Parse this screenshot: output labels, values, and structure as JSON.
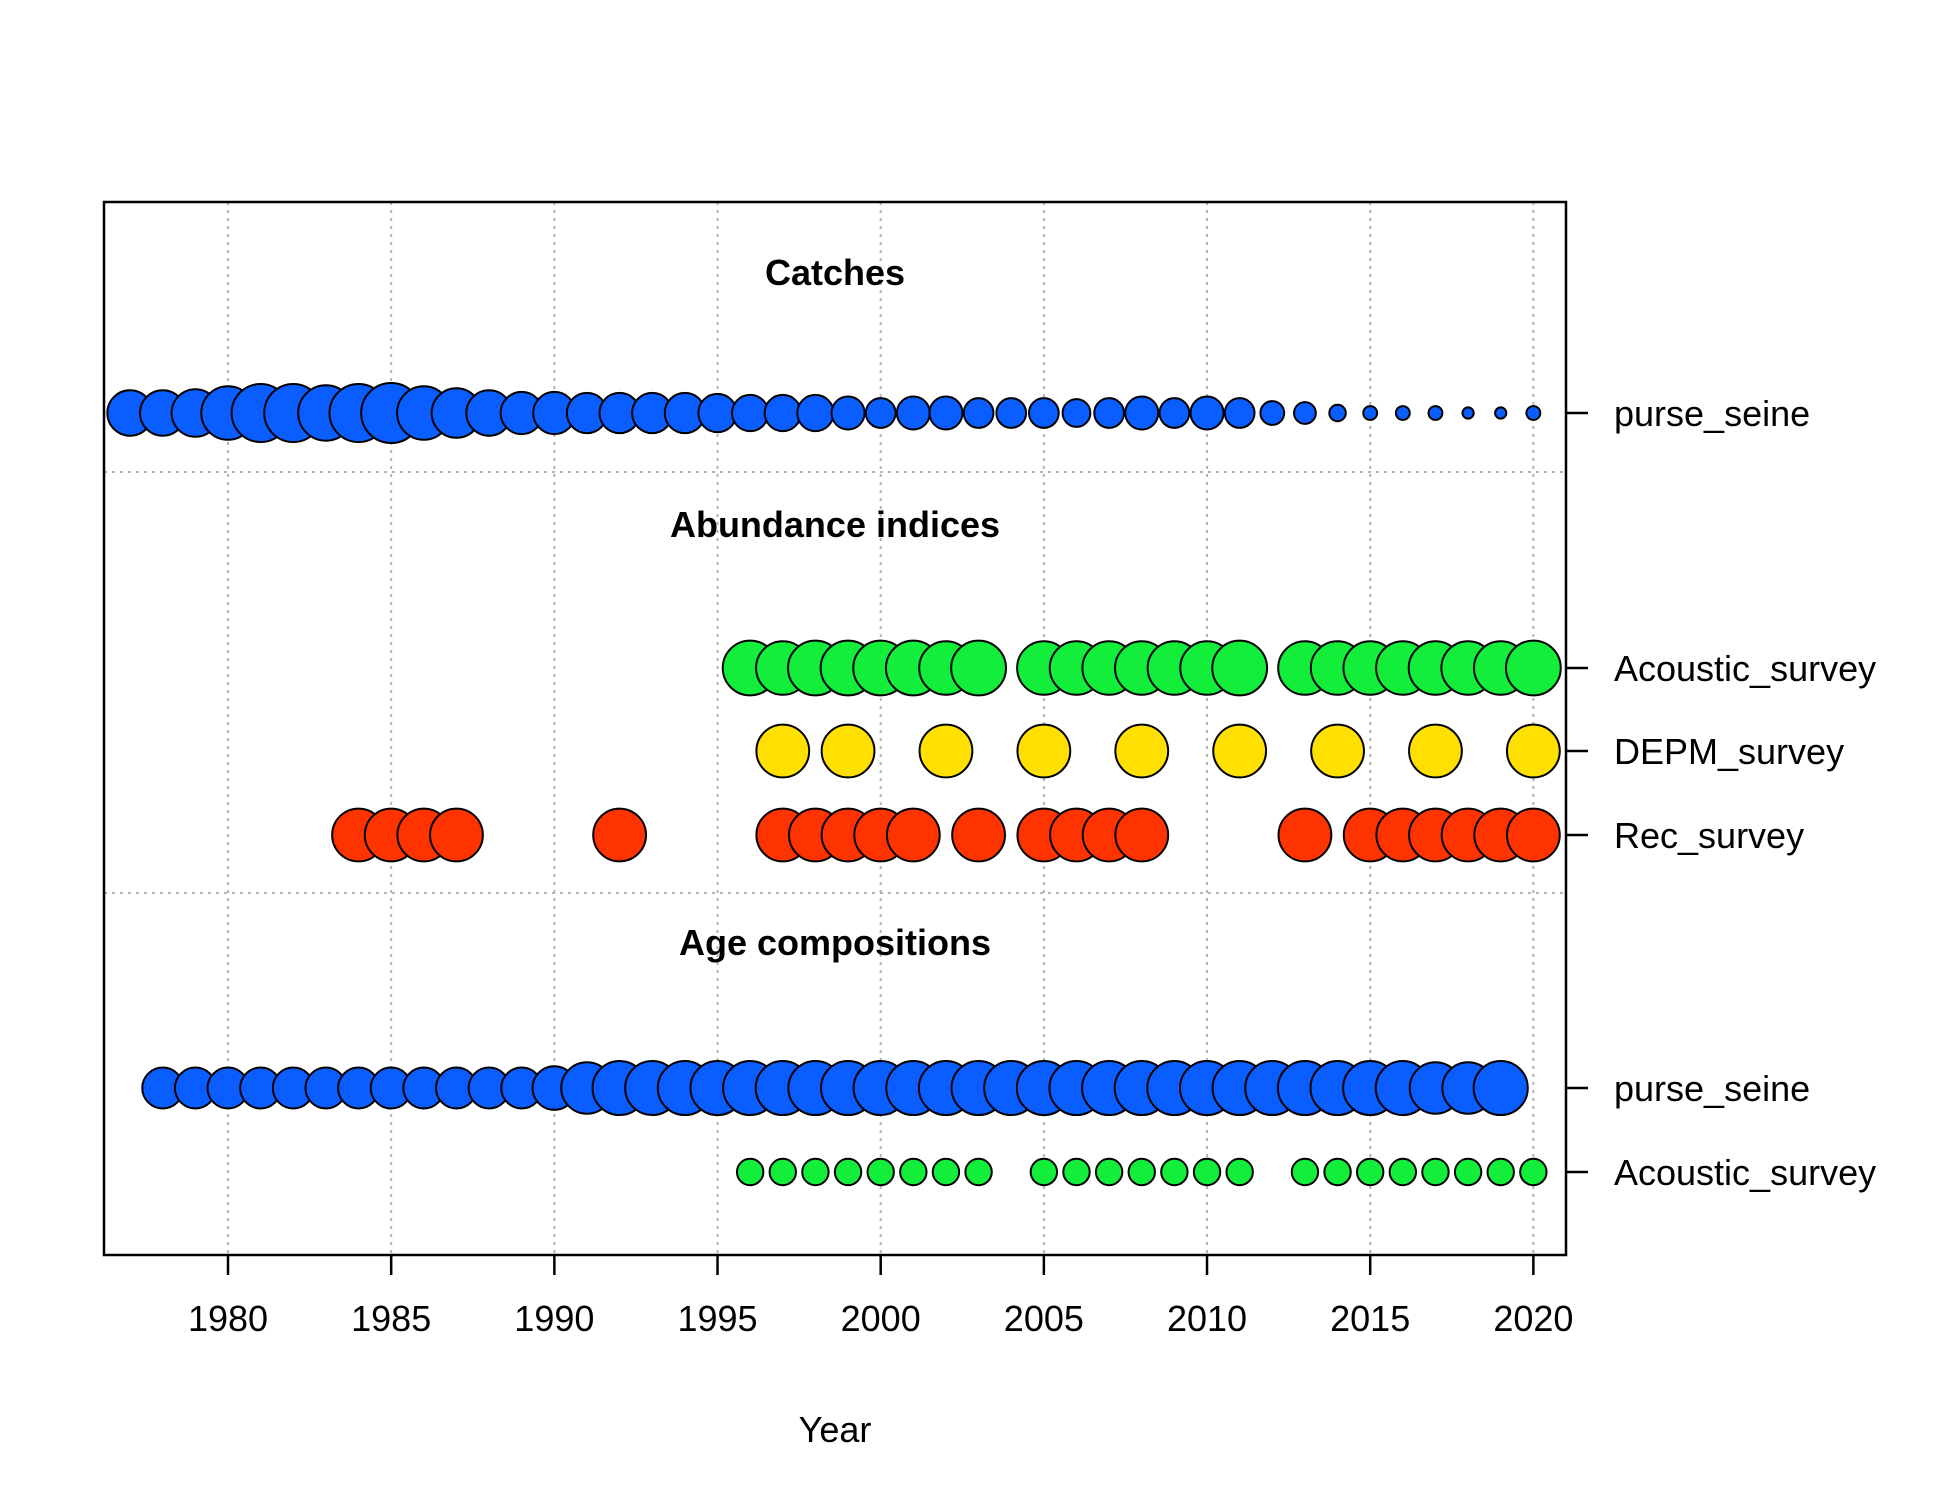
{
  "chart_data": {
    "type": "scatter",
    "xlabel": "Year",
    "xlim": [
      1976.2,
      2021
    ],
    "xticks": [
      1980,
      1985,
      1990,
      1995,
      2000,
      2005,
      2010,
      2015,
      2020
    ],
    "grid": true,
    "panels": [
      {
        "title": "Catches",
        "series": [
          {
            "name": "purse_seine",
            "color": "#0A5EFF",
            "x": [
              1977,
              1978,
              1979,
              1980,
              1981,
              1982,
              1983,
              1984,
              1985,
              1986,
              1987,
              1988,
              1989,
              1990,
              1991,
              1992,
              1993,
              1994,
              1995,
              1996,
              1997,
              1998,
              1999,
              2000,
              2001,
              2002,
              2003,
              2004,
              2005,
              2006,
              2007,
              2008,
              2009,
              2010,
              2011,
              2012,
              2013,
              2014,
              2015,
              2016,
              2017,
              2018,
              2019,
              2020
            ],
            "size": [
              0.69,
              0.69,
              0.72,
              0.81,
              0.88,
              0.88,
              0.84,
              0.88,
              0.91,
              0.81,
              0.75,
              0.69,
              0.64,
              0.64,
              0.61,
              0.61,
              0.61,
              0.61,
              0.58,
              0.55,
              0.55,
              0.55,
              0.5,
              0.45,
              0.5,
              0.5,
              0.45,
              0.45,
              0.45,
              0.42,
              0.45,
              0.5,
              0.45,
              0.5,
              0.45,
              0.36,
              0.33,
              0.25,
              0.21,
              0.21,
              0.21,
              0.17,
              0.17,
              0.21
            ]
          }
        ]
      },
      {
        "title": "Abundance indices",
        "series": [
          {
            "name": "Acoustic_survey",
            "color": "#12EE3A",
            "x": [
              1996,
              1997,
              1998,
              1999,
              2000,
              2001,
              2002,
              2003,
              2005,
              2006,
              2007,
              2008,
              2009,
              2010,
              2011,
              2013,
              2014,
              2015,
              2016,
              2017,
              2018,
              2019,
              2020
            ],
            "size": [
              0.83,
              0.81,
              0.83,
              0.83,
              0.83,
              0.83,
              0.81,
              0.83,
              0.81,
              0.81,
              0.81,
              0.81,
              0.81,
              0.81,
              0.83,
              0.81,
              0.81,
              0.81,
              0.81,
              0.81,
              0.81,
              0.81,
              0.83
            ]
          },
          {
            "name": "DEPM_survey",
            "color": "#FFE000",
            "x": [
              1997,
              1999,
              2002,
              2005,
              2008,
              2011,
              2014,
              2017,
              2020
            ],
            "size": [
              0.8,
              0.8,
              0.8,
              0.8,
              0.8,
              0.8,
              0.8,
              0.8,
              0.8
            ]
          },
          {
            "name": "Rec_survey",
            "color": "#FF3300",
            "x": [
              1984,
              1985,
              1986,
              1987,
              1992,
              1997,
              1998,
              1999,
              2000,
              2001,
              2003,
              2005,
              2006,
              2007,
              2008,
              2013,
              2015,
              2016,
              2017,
              2018,
              2019,
              2020
            ],
            "size": [
              0.8,
              0.8,
              0.8,
              0.8,
              0.8,
              0.8,
              0.8,
              0.8,
              0.8,
              0.8,
              0.8,
              0.8,
              0.8,
              0.8,
              0.8,
              0.8,
              0.8,
              0.8,
              0.8,
              0.8,
              0.8,
              0.8
            ]
          }
        ]
      },
      {
        "title": "Age compositions",
        "series": [
          {
            "name": "purse_seine",
            "color": "#0A5EFF",
            "x": [
              1978,
              1979,
              1980,
              1981,
              1982,
              1983,
              1984,
              1985,
              1986,
              1987,
              1988,
              1989,
              1990,
              1991,
              1992,
              1993,
              1994,
              1995,
              1996,
              1997,
              1998,
              1999,
              2000,
              2001,
              2002,
              2003,
              2004,
              2005,
              2006,
              2007,
              2008,
              2009,
              2010,
              2011,
              2012,
              2013,
              2014,
              2015,
              2016,
              2017,
              2018,
              2019
            ],
            "size": [
              0.62,
              0.62,
              0.62,
              0.62,
              0.62,
              0.62,
              0.62,
              0.62,
              0.62,
              0.62,
              0.62,
              0.62,
              0.66,
              0.78,
              0.82,
              0.82,
              0.82,
              0.82,
              0.82,
              0.82,
              0.82,
              0.82,
              0.82,
              0.82,
              0.82,
              0.82,
              0.82,
              0.82,
              0.82,
              0.82,
              0.82,
              0.82,
              0.82,
              0.82,
              0.82,
              0.82,
              0.82,
              0.82,
              0.82,
              0.78,
              0.78,
              0.82
            ]
          },
          {
            "name": "Acoustic_survey",
            "color": "#12EE3A",
            "x": [
              1996,
              1997,
              1998,
              1999,
              2000,
              2001,
              2002,
              2003,
              2005,
              2006,
              2007,
              2008,
              2009,
              2010,
              2011,
              2013,
              2014,
              2015,
              2016,
              2017,
              2018,
              2019,
              2020
            ],
            "size": [
              0.4,
              0.4,
              0.4,
              0.4,
              0.4,
              0.4,
              0.4,
              0.4,
              0.4,
              0.4,
              0.4,
              0.4,
              0.4,
              0.4,
              0.4,
              0.4,
              0.4,
              0.4,
              0.4,
              0.4,
              0.4,
              0.4,
              0.4
            ]
          }
        ]
      }
    ]
  }
}
